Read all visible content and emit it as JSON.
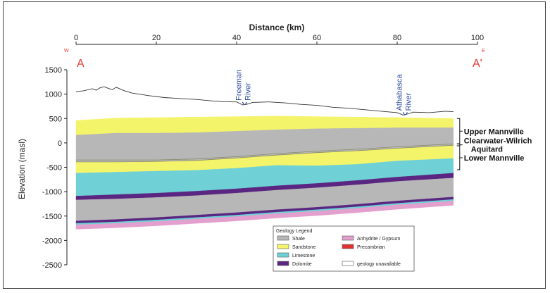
{
  "chart_data": {
    "type": "geologic-cross-section",
    "title": "Distance (km)",
    "xlabel": "Distance (km)",
    "ylabel": "Elevation (masl)",
    "xlim": [
      0,
      100
    ],
    "ylim": [
      -2500,
      1500
    ],
    "x_ticks": [
      "0",
      "20",
      "40",
      "60",
      "80",
      "100"
    ],
    "y_ticks": [
      "1500",
      "1000",
      "500",
      "0",
      "-500",
      "-1000",
      "-1500",
      "-2000",
      "-2500"
    ],
    "section_start": "A",
    "section_end": "A'",
    "west_label": "W",
    "east_label": "E",
    "rivers": [
      {
        "name": "Freeman River",
        "line1": "Freeman",
        "line2": "River",
        "x": 42,
        "elevation": 780
      },
      {
        "name": "Athabasca River",
        "line1": "Athabasca",
        "line2": "River",
        "x": 82,
        "elevation": 570
      }
    ],
    "topography": {
      "x": [
        0,
        2,
        4,
        5,
        6,
        7,
        8,
        9,
        10,
        12,
        14,
        18,
        22,
        26,
        30,
        34,
        37,
        40,
        41.5,
        42.5,
        44,
        48,
        52,
        56,
        60,
        64,
        68,
        72,
        76,
        80,
        81.5,
        82.5,
        84,
        88,
        92,
        94
      ],
      "y": [
        1050,
        1070,
        1110,
        1080,
        1130,
        1150,
        1120,
        1090,
        1140,
        1070,
        1020,
        970,
        930,
        910,
        890,
        860,
        845,
        840,
        780,
        790,
        830,
        840,
        820,
        790,
        770,
        730,
        710,
        680,
        650,
        620,
        570,
        590,
        630,
        620,
        650,
        640
      ]
    },
    "layer_tops": {
      "x": [
        0,
        10,
        20,
        30,
        40,
        50,
        60,
        70,
        80,
        94
      ],
      "sandstone_top": [
        460,
        510,
        520,
        530,
        540,
        550,
        540,
        530,
        520,
        500
      ],
      "shale_top": [
        160,
        200,
        200,
        210,
        240,
        270,
        290,
        300,
        310,
        310
      ],
      "clearwater_top": [
        -350,
        -350,
        -350,
        -330,
        -280,
        -220,
        -170,
        -130,
        -80,
        -20
      ],
      "lower_sand_top": [
        -390,
        -390,
        -380,
        -360,
        -310,
        -250,
        -200,
        -160,
        -110,
        -50
      ],
      "limestone_top": [
        -620,
        -600,
        -580,
        -560,
        -520,
        -460,
        -470,
        -440,
        -370,
        -320
      ],
      "dolomite1_top": [
        -1090,
        -1060,
        -1030,
        -990,
        -940,
        -880,
        -830,
        -770,
        -700,
        -620
      ],
      "shale2_top": [
        -1170,
        -1150,
        -1120,
        -1080,
        -1030,
        -970,
        -920,
        -860,
        -790,
        -720
      ],
      "dolomite2_top": [
        -1600,
        -1570,
        -1530,
        -1480,
        -1430,
        -1370,
        -1320,
        -1260,
        -1190,
        -1110
      ],
      "limestone2_top": [
        -1650,
        -1620,
        -1580,
        -1530,
        -1480,
        -1420,
        -1370,
        -1310,
        -1240,
        -1160
      ],
      "anhydrite_top": [
        -1680,
        -1650,
        -1610,
        -1560,
        -1510,
        -1450,
        -1400,
        -1340,
        -1270,
        -1190
      ],
      "base": [
        -1770,
        -1740,
        -1700,
        -1650,
        -1600,
        -1540,
        -1490,
        -1430,
        -1360,
        -1280
      ]
    },
    "unit_brackets": [
      {
        "label": "Upper Mannville",
        "top": 500,
        "bottom": -20
      },
      {
        "label": "Clearwater-Wilrich",
        "label2": "Aquitard",
        "top": -20,
        "bottom": -60
      },
      {
        "label": "Lower Mannville",
        "top": -60,
        "bottom": -550
      }
    ],
    "legend": {
      "title": "Geology Legend",
      "items": [
        {
          "label": "Shale",
          "color": "#b7b7b7"
        },
        {
          "label": "Anhydrite / Gypsum",
          "color": "#e39fcd"
        },
        {
          "label": "Sandstone",
          "color": "#f4f46b"
        },
        {
          "label": "Precambrian",
          "color": "#e03131"
        },
        {
          "label": "Limestone",
          "color": "#6fd1d6"
        },
        {
          "label": "",
          "color": ""
        },
        {
          "label": "Dolomite",
          "color": "#5a2682"
        },
        {
          "label": "geology unavailable",
          "color": "#ffffff"
        }
      ]
    },
    "colors": {
      "shale": "#b7b7b7",
      "sandstone": "#f4f46b",
      "limestone": "#6fd1d6",
      "dolomite": "#5a2682",
      "anhydrite": "#e39fcd",
      "precambrian": "#e03131",
      "label_red": "#e8342f",
      "river_blue": "#2f4fa0"
    }
  }
}
